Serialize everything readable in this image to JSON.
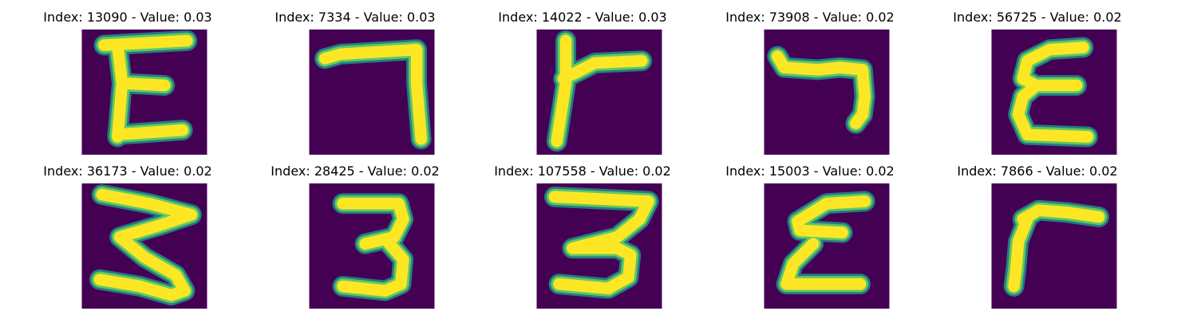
{
  "colors": {
    "background": "#440154",
    "edge": "#21918c",
    "mid": "#5ec962",
    "stroke": "#fde725"
  },
  "panels": [
    {
      "title": "Index: 13090 - Value: 0.03",
      "glyph": "E"
    },
    {
      "title": "Index: 7334 - Value: 0.03",
      "glyph": "7"
    },
    {
      "title": "Index: 14022 - Value: 0.03",
      "glyph": "r"
    },
    {
      "title": "Index: 73908 - Value: 0.02",
      "glyph": "7"
    },
    {
      "title": "Index: 56725 - Value: 0.02",
      "glyph": "E"
    },
    {
      "title": "Index: 36173 - Value: 0.02",
      "glyph": "3"
    },
    {
      "title": "Index: 28425 - Value: 0.02",
      "glyph": "3"
    },
    {
      "title": "Index: 107558 - Value: 0.02",
      "glyph": "3"
    },
    {
      "title": "Index: 15003 - Value: 0.02",
      "glyph": "E"
    },
    {
      "title": "Index: 7866 - Value: 0.02",
      "glyph": "r"
    }
  ]
}
